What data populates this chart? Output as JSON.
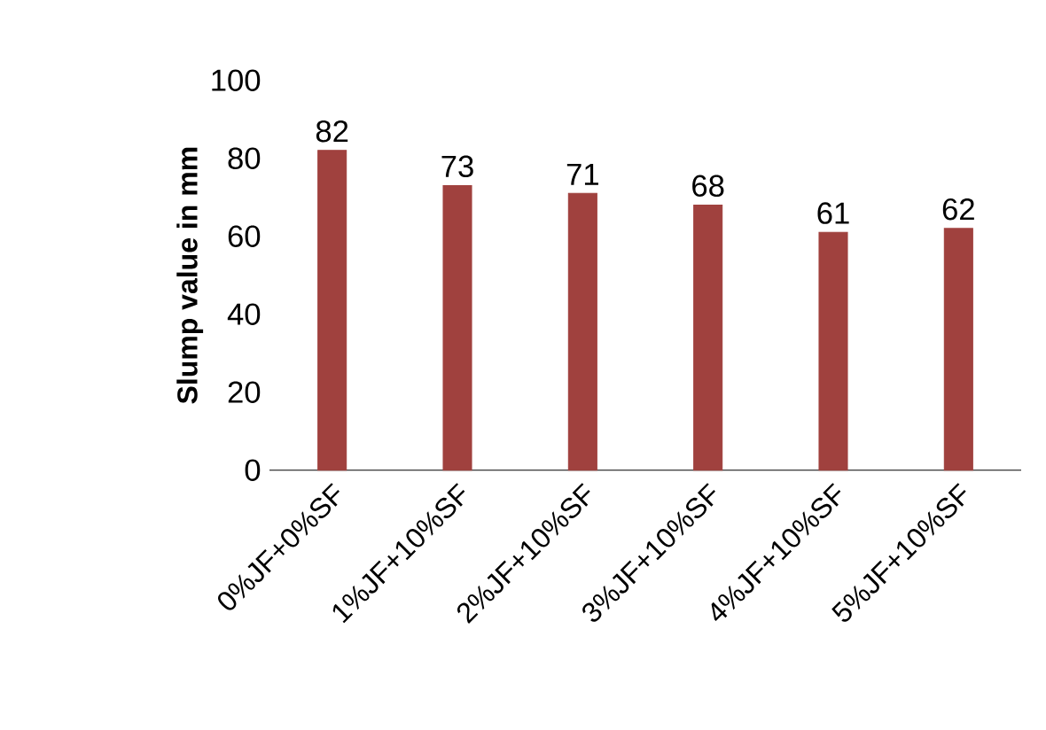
{
  "chart_data": {
    "type": "bar",
    "ylabel": "Slump value in mm",
    "categories": [
      "0%JF+0%SF",
      "1%JF+10%SF",
      "2%JF+10%SF",
      "3%JF+10%SF",
      "4%JF+10%SF",
      "5%JF+10%SF"
    ],
    "values": [
      82,
      73,
      71,
      68,
      61,
      62
    ],
    "color": "#a0413e",
    "ylim": [
      0,
      100
    ],
    "yticks": [
      0,
      20,
      40,
      60,
      80,
      100
    ],
    "data_labels": true
  }
}
